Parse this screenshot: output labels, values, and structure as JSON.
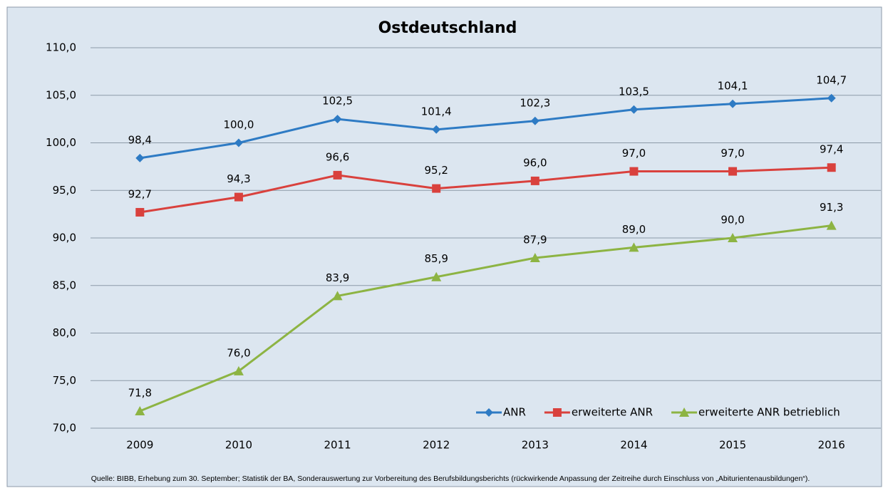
{
  "chart_data": {
    "type": "line",
    "title": "Ostdeutschland",
    "categories": [
      "2009",
      "2010",
      "2011",
      "2012",
      "2013",
      "2014",
      "2015",
      "2016"
    ],
    "series": [
      {
        "name": "ANR",
        "color": "#2e7bc4",
        "marker": "diamond",
        "values": [
          98.4,
          100.0,
          102.5,
          101.4,
          102.3,
          103.5,
          104.1,
          104.7
        ],
        "value_labels": [
          "98,4",
          "100,0",
          "102,5",
          "101,4",
          "102,3",
          "103,5",
          "104,1",
          "104,7"
        ]
      },
      {
        "name": "erweiterte ANR",
        "color": "#d9413d",
        "marker": "square",
        "values": [
          92.7,
          94.3,
          96.6,
          95.2,
          96.0,
          97.0,
          97.0,
          97.4
        ],
        "value_labels": [
          "92,7",
          "94,3",
          "96,6",
          "95,2",
          "96,0",
          "97,0",
          "97,0",
          "97,4"
        ]
      },
      {
        "name": "erweiterte ANR betrieblich",
        "color": "#8db443",
        "marker": "triangle",
        "values": [
          71.8,
          76.0,
          83.9,
          85.9,
          87.9,
          89.0,
          90.0,
          91.3
        ],
        "value_labels": [
          "71,8",
          "76,0",
          "83,9",
          "85,9",
          "87,9",
          "89,0",
          "90,0",
          "91,3"
        ]
      }
    ],
    "ylim": [
      70,
      110
    ],
    "yticks": [
      {
        "value": 70,
        "label": "70,0"
      },
      {
        "value": 75,
        "label": "75,0"
      },
      {
        "value": 80,
        "label": "80,0"
      },
      {
        "value": 85,
        "label": "85,0"
      },
      {
        "value": 90,
        "label": "90,0"
      },
      {
        "value": 95,
        "label": "95,0"
      },
      {
        "value": 100,
        "label": "100,0"
      },
      {
        "value": 105,
        "label": "105,0"
      },
      {
        "value": 110,
        "label": "110,0"
      }
    ],
    "grid": true,
    "legend": "bottom-right",
    "source": "Quelle: BIBB, Erhebung zum 30. September; Statistik der BA, Sonderauswertung zur Vorbereitung des Berufsbildungsberichts (rückwirkende Anpassung der Zeitreihe durch Einschluss von „Abiturientenausbildungen“)."
  }
}
